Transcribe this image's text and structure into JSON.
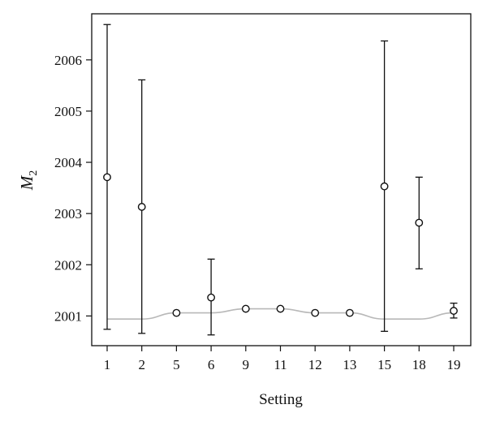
{
  "chart_data": {
    "type": "scatter",
    "title": "",
    "xlabel": "Setting",
    "ylabel": {
      "main": "M",
      "sub": "2"
    },
    "categories": [
      "1",
      "2",
      "5",
      "6",
      "9",
      "11",
      "12",
      "13",
      "15",
      "18",
      "19"
    ],
    "y_ticks": [
      "2001",
      "2002",
      "2003",
      "2004",
      "2005",
      "2006"
    ],
    "ylim": [
      2000.42,
      2006.9
    ],
    "grid": false,
    "legend": "none",
    "series": [
      {
        "kind": "points-with-error-bars",
        "values": [
          2003.71,
          2003.13,
          2001.06,
          2001.36,
          2001.14,
          2001.14,
          2001.06,
          2001.06,
          2003.53,
          2002.82,
          2001.1
        ],
        "lower": [
          2000.74,
          2000.66,
          2001.06,
          2000.63,
          2001.14,
          2001.14,
          2001.06,
          2001.06,
          2000.7,
          2001.92,
          2000.96
        ],
        "upper": [
          2006.69,
          2005.61,
          2001.06,
          2002.11,
          2001.14,
          2001.14,
          2001.06,
          2001.06,
          2006.37,
          2003.71,
          2001.25
        ]
      },
      {
        "kind": "reference-line",
        "values": [
          2000.94,
          2000.94,
          2001.06,
          2001.06,
          2001.14,
          2001.14,
          2001.06,
          2001.06,
          2000.94,
          2000.94,
          2001.06
        ]
      }
    ],
    "colors": {
      "points": "#111111",
      "reference": "#b8b8b8",
      "axes": "#111111"
    }
  }
}
